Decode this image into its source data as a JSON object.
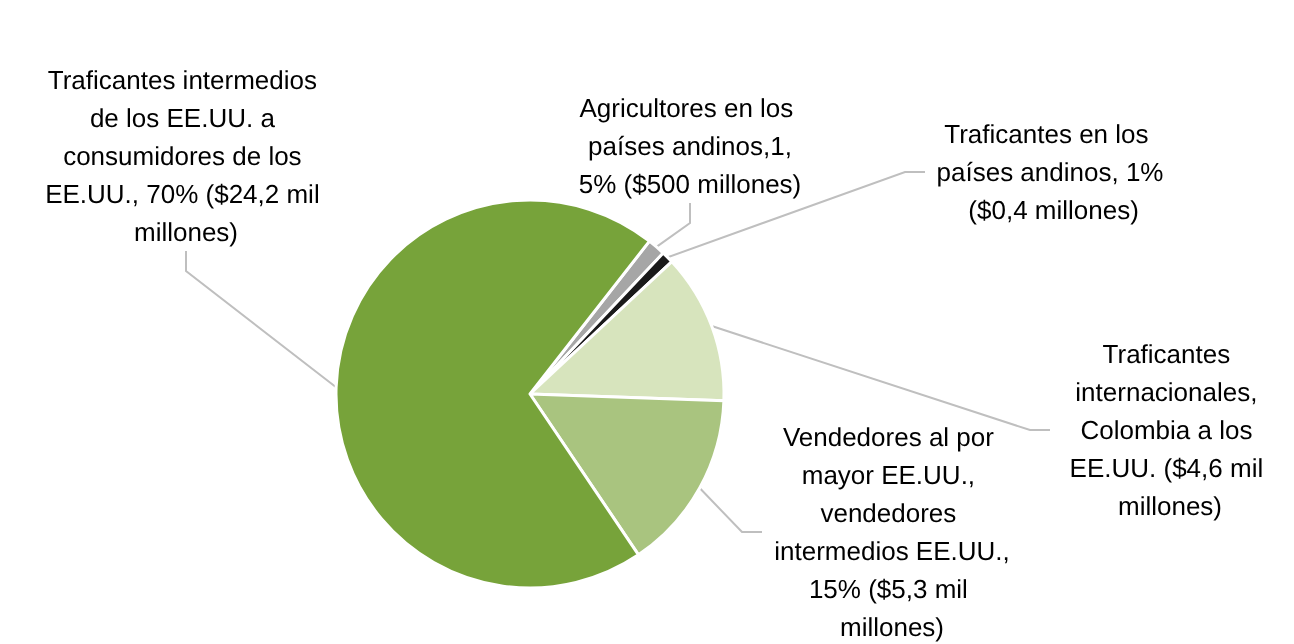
{
  "chart_data": {
    "type": "pie",
    "categories": [
      "Agricultores en los países andinos,1,5% ($500 millones)",
      "Traficantes en los países andinos, 1% ($0,4 millones)",
      "Traficantes internacionales, Colombia a los EE.UU. ($4,6 mil millones)",
      "Vendedores al por mayor EE.UU., vendedores intermedios EE.UU.,15% ($5,3 mil millones)",
      "Traficantes intermedios de los EE.UU. a consumidores de los EE.UU., 70% ($24,2 mil millones)"
    ],
    "values": [
      1.5,
      1,
      12.5,
      15,
      70
    ],
    "colors": [
      "#a6a6a6",
      "#1a1a1a",
      "#d7e4bd",
      "#a9c47f",
      "#77a33a"
    ],
    "legend": false
  }
}
